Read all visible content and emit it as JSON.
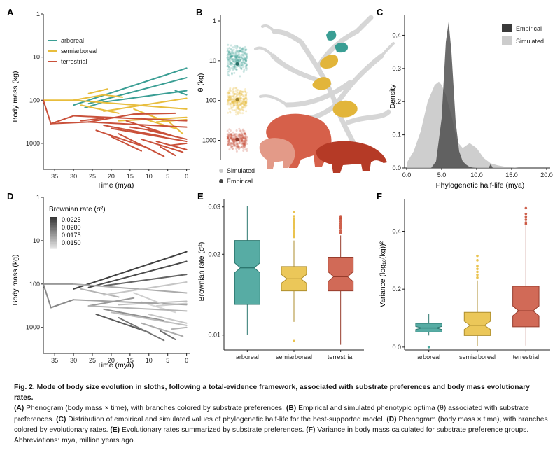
{
  "colors": {
    "arboreal": "#3a9e94",
    "semiarboreal": "#e8bd3c",
    "terrestrial": "#c9503a",
    "empirical": "#555555",
    "simulated": "#cccccc",
    "axis": "#222222"
  },
  "panels": {
    "A": {
      "letter": "A",
      "ylabel": "Body mass (kg)",
      "xlabel": "Time (mya)"
    },
    "B": {
      "letter": "B",
      "ylabel": "θ (kg)"
    },
    "C": {
      "letter": "C",
      "ylabel": "Density",
      "xlabel": "Phylogenetic half-life (mya)"
    },
    "D": {
      "letter": "D",
      "ylabel": "Body mass (kg)",
      "xlabel": "Time (mya)",
      "legend_title": "Brownian rate (σ²)",
      "legend_values": [
        "0.0225",
        "0.0200",
        "0.0175",
        "0.0150"
      ]
    },
    "E": {
      "letter": "E",
      "ylabel": "Brownian rate (σ²)"
    },
    "F": {
      "letter": "F",
      "ylabel": "Variance (log₁₀(kg))²"
    }
  },
  "chart_data": [
    {
      "panel": "A",
      "type": "line",
      "xlabel": "Time (mya)",
      "ylabel": "Body mass (kg)",
      "x_reversed": true,
      "y_log": true,
      "y_reversed": true,
      "xlim": [
        38,
        -1
      ],
      "ylim": [
        1,
        4000
      ],
      "x_ticks": [
        "35",
        "30",
        "25",
        "20",
        "15",
        "10",
        "5",
        "0"
      ],
      "y_ticks": [
        "1",
        "10",
        "100",
        "1000"
      ],
      "legend": [
        "arboreal",
        "semiarboreal",
        "terrestrial"
      ],
      "series": [
        {
          "name": "arboreal",
          "segments": [
            [
              [
                30,
                130
              ],
              [
                0,
                18
              ]
            ],
            [
              [
                26,
                120
              ],
              [
                0,
                30
              ]
            ],
            [
              [
                27,
                150
              ],
              [
                22,
                110
              ]
            ],
            [
              [
                22,
                110
              ],
              [
                0,
                60
              ]
            ],
            [
              [
                3,
                60
              ],
              [
                0,
                75
              ]
            ]
          ]
        },
        {
          "name": "semiarboreal",
          "segments": [
            [
              [
                38,
                100
              ],
              [
                30,
                100
              ]
            ],
            [
              [
                30,
                100
              ],
              [
                0,
                160
              ]
            ],
            [
              [
                30,
                100
              ],
              [
                22,
                75
              ]
            ],
            [
              [
                22,
                75
              ],
              [
                17,
                85
              ]
            ],
            [
              [
                28,
                130
              ],
              [
                18,
                200
              ]
            ],
            [
              [
                22,
                180
              ],
              [
                0,
                90
              ]
            ],
            [
              [
                18,
                300
              ],
              [
                0,
                250
              ]
            ],
            [
              [
                12,
                260
              ],
              [
                3,
                450
              ]
            ],
            [
              [
                8,
                320
              ],
              [
                0,
                280
              ]
            ],
            [
              [
                5,
                300
              ],
              [
                1,
                600
              ]
            ],
            [
              [
                14,
                160
              ],
              [
                6,
                300
              ]
            ],
            [
              [
                26,
                70
              ],
              [
                21,
                55
              ]
            ]
          ]
        },
        {
          "name": "terrestrial",
          "segments": [
            [
              [
                38,
                100
              ],
              [
                36,
                350
              ]
            ],
            [
              [
                36,
                350
              ],
              [
                30,
                230
              ]
            ],
            [
              [
                30,
                230
              ],
              [
                0,
                300
              ]
            ],
            [
              [
                36,
                350
              ],
              [
                26,
                320
              ]
            ],
            [
              [
                26,
                320
              ],
              [
                14,
                210
              ]
            ],
            [
              [
                14,
                210
              ],
              [
                3,
                200
              ]
            ],
            [
              [
                26,
                320
              ],
              [
                0,
                420
              ]
            ],
            [
              [
                24,
                500
              ],
              [
                10,
                1300
              ]
            ],
            [
              [
                22,
                380
              ],
              [
                6,
                700
              ]
            ],
            [
              [
                20,
                450
              ],
              [
                0,
                900
              ]
            ],
            [
              [
                18,
                600
              ],
              [
                6,
                2000
              ]
            ],
            [
              [
                16,
                300
              ],
              [
                3,
                700
              ]
            ],
            [
              [
                12,
                800
              ],
              [
                1,
                1600
              ]
            ],
            [
              [
                10,
                500
              ],
              [
                0,
                800
              ]
            ],
            [
              [
                8,
                900
              ],
              [
                0,
                1400
              ]
            ],
            [
              [
                20,
                700
              ],
              [
                12,
                1500
              ]
            ],
            [
              [
                7,
                1200
              ],
              [
                3,
                1900
              ]
            ],
            [
              [
                15,
                420
              ],
              [
                8,
                520
              ]
            ],
            [
              [
                4,
                1100
              ],
              [
                0,
                1000
              ]
            ],
            [
              [
                28,
                300
              ],
              [
                22,
                260
              ]
            ]
          ]
        }
      ]
    },
    {
      "panel": "B",
      "type": "scatter",
      "ylabel": "θ (kg)",
      "y_log": true,
      "y_reversed": true,
      "y_ticks": [
        "1",
        "10",
        "100",
        "1000"
      ],
      "legend": [
        "Simulated",
        "Empirical"
      ],
      "series": [
        {
          "name": "arboreal",
          "simulated_range": [
            3,
            30
          ],
          "empirical": 12
        },
        {
          "name": "semiarboreal",
          "simulated_range": [
            35,
            300
          ],
          "empirical": 95
        },
        {
          "name": "terrestrial",
          "simulated_range": [
            450,
            2200
          ],
          "empirical": 950
        }
      ]
    },
    {
      "panel": "C",
      "type": "area",
      "xlabel": "Phylogenetic half-life (mya)",
      "ylabel": "Density",
      "xlim": [
        -0.3,
        20.5
      ],
      "ylim": [
        0,
        0.46
      ],
      "x_ticks": [
        "0.0",
        "5.0",
        "10.0",
        "15.0",
        "20.0"
      ],
      "y_ticks": [
        "0.0",
        "0.1",
        "0.2",
        "0.3",
        "0.4"
      ],
      "legend": [
        "Empirical",
        "Simulated"
      ],
      "series": [
        {
          "name": "Empirical",
          "x": [
            3.5,
            4.2,
            5.0,
            5.6,
            6.0,
            6.4,
            7.0,
            7.5,
            8.0,
            8.5,
            9.0,
            9.5,
            10.0
          ],
          "y": [
            0.0,
            0.02,
            0.15,
            0.38,
            0.44,
            0.35,
            0.14,
            0.05,
            0.02,
            0.01,
            0.003,
            0.001,
            0.0
          ]
        },
        {
          "name": "Simulated",
          "x": [
            0.0,
            1.0,
            2.0,
            3.0,
            4.0,
            4.6,
            5.0,
            5.6,
            6.5,
            7.2,
            8.0,
            9.0,
            10.0,
            11.0,
            12.0,
            13.0,
            14.0,
            15.0,
            16.0,
            20.0
          ],
          "y": [
            0.015,
            0.05,
            0.11,
            0.2,
            0.25,
            0.26,
            0.25,
            0.22,
            0.15,
            0.08,
            0.06,
            0.075,
            0.06,
            0.03,
            0.014,
            0.008,
            0.004,
            0.002,
            0.0,
            0.0
          ]
        }
      ]
    },
    {
      "panel": "D",
      "type": "line",
      "xlabel": "Time (mya)",
      "ylabel": "Body mass (kg)",
      "x_reversed": true,
      "y_log": true,
      "y_reversed": true,
      "xlim": [
        38,
        -1
      ],
      "ylim": [
        1,
        4000
      ],
      "x_ticks": [
        "35",
        "30",
        "25",
        "20",
        "15",
        "10",
        "5",
        "0"
      ],
      "y_ticks": [
        "1",
        "10",
        "100",
        "1000"
      ],
      "color_scale": {
        "title": "Brownian rate (σ²)",
        "min": 0.014,
        "max": 0.0235,
        "ticks": [
          0.0225,
          0.02,
          0.0175,
          0.015
        ]
      },
      "segments": [
        {
          "from": [
            30,
            130
          ],
          "to": [
            0,
            18
          ],
          "rate": 0.023
        },
        {
          "from": [
            26,
            120
          ],
          "to": [
            0,
            30
          ],
          "rate": 0.0225
        },
        {
          "from": [
            22,
            110
          ],
          "to": [
            0,
            60
          ],
          "rate": 0.021
        },
        {
          "from": [
            38,
            100
          ],
          "to": [
            30,
            100
          ],
          "rate": 0.018
        },
        {
          "from": [
            30,
            100
          ],
          "to": [
            0,
            160
          ],
          "rate": 0.017
        },
        {
          "from": [
            28,
            130
          ],
          "to": [
            18,
            200
          ],
          "rate": 0.0165
        },
        {
          "from": [
            22,
            180
          ],
          "to": [
            0,
            90
          ],
          "rate": 0.0155
        },
        {
          "from": [
            18,
            300
          ],
          "to": [
            0,
            250
          ],
          "rate": 0.016
        },
        {
          "from": [
            12,
            260
          ],
          "to": [
            3,
            450
          ],
          "rate": 0.0145
        },
        {
          "from": [
            8,
            320
          ],
          "to": [
            0,
            280
          ],
          "rate": 0.015
        },
        {
          "from": [
            38,
            100
          ],
          "to": [
            36,
            350
          ],
          "rate": 0.019
        },
        {
          "from": [
            36,
            350
          ],
          "to": [
            30,
            230
          ],
          "rate": 0.019
        },
        {
          "from": [
            30,
            230
          ],
          "to": [
            0,
            300
          ],
          "rate": 0.0175
        },
        {
          "from": [
            26,
            320
          ],
          "to": [
            14,
            210
          ],
          "rate": 0.018
        },
        {
          "from": [
            26,
            320
          ],
          "to": [
            0,
            420
          ],
          "rate": 0.0165
        },
        {
          "from": [
            24,
            500
          ],
          "to": [
            10,
            1300
          ],
          "rate": 0.0215
        },
        {
          "from": [
            22,
            380
          ],
          "to": [
            6,
            700
          ],
          "rate": 0.0185
        },
        {
          "from": [
            20,
            450
          ],
          "to": [
            0,
            900
          ],
          "rate": 0.016
        },
        {
          "from": [
            18,
            600
          ],
          "to": [
            6,
            2000
          ],
          "rate": 0.02
        },
        {
          "from": [
            12,
            800
          ],
          "to": [
            1,
            1600
          ],
          "rate": 0.017
        },
        {
          "from": [
            10,
            500
          ],
          "to": [
            0,
            800
          ],
          "rate": 0.0155
        },
        {
          "from": [
            7,
            1200
          ],
          "to": [
            3,
            1900
          ],
          "rate": 0.0205
        },
        {
          "from": [
            14,
            160
          ],
          "to": [
            6,
            300
          ],
          "rate": 0.015
        },
        {
          "from": [
            4,
            1100
          ],
          "to": [
            0,
            1000
          ],
          "rate": 0.0165
        }
      ]
    },
    {
      "panel": "E",
      "type": "box",
      "ylabel": "Brownian rate (σ²)",
      "y_log": true,
      "ylim": [
        0.0088,
        0.032
      ],
      "y_ticks": [
        "0.01",
        "0.02",
        "0.03"
      ],
      "categories": [
        "arboreal",
        "semiarboreal",
        "terrestrial"
      ],
      "series": [
        {
          "name": "arboreal",
          "min": 0.01,
          "q1": 0.013,
          "median": 0.0178,
          "q3": 0.0225,
          "max": 0.0302,
          "outliers": []
        },
        {
          "name": "semiarboreal",
          "min": 0.0112,
          "q1": 0.0146,
          "median": 0.0162,
          "q3": 0.018,
          "max": 0.0225,
          "outliers": [
            0.0095,
            0.0232,
            0.0236,
            0.024,
            0.0245,
            0.025,
            0.0255,
            0.026,
            0.0265,
            0.027,
            0.0277,
            0.0287
          ]
        },
        {
          "name": "terrestrial",
          "min": 0.0092,
          "q1": 0.0146,
          "median": 0.0165,
          "q3": 0.0195,
          "max": 0.0235,
          "outliers": [
            0.024,
            0.0245,
            0.025,
            0.0255,
            0.026,
            0.0265,
            0.027,
            0.0273,
            0.0277
          ]
        }
      ]
    },
    {
      "panel": "F",
      "type": "box",
      "ylabel": "Variance (log₁₀(kg))²",
      "ylim": [
        -0.01,
        0.51
      ],
      "y_ticks": [
        "0.0",
        "0.2",
        "0.4"
      ],
      "categories": [
        "arboreal",
        "semiarboreal",
        "terrestrial"
      ],
      "series": [
        {
          "name": "arboreal",
          "min": 0.04,
          "q1": 0.052,
          "median": 0.066,
          "q3": 0.082,
          "max": 0.115,
          "outliers": [
            0.0
          ]
        },
        {
          "name": "semiarboreal",
          "min": 0.003,
          "q1": 0.04,
          "median": 0.075,
          "q3": 0.12,
          "max": 0.23,
          "outliers": [
            0.24,
            0.25,
            0.26,
            0.27,
            0.28,
            0.3,
            0.315
          ]
        },
        {
          "name": "terrestrial",
          "min": 0.005,
          "q1": 0.07,
          "median": 0.125,
          "q3": 0.21,
          "max": 0.42,
          "outliers": [
            0.425,
            0.43,
            0.44,
            0.45,
            0.46,
            0.48
          ]
        }
      ]
    }
  ],
  "caption": {
    "title": "Fig. 2. Mode of body size evolution in sloths, following a total-evidence framework, associated with substrate preferences and body mass evolutionary rates.",
    "lines": [
      {
        "label": "(A)",
        "text": "Phenogram (body mass × time), with branches colored by substrate preferences. "
      },
      {
        "label": "(B)",
        "text": "Empirical and simulated phenotypic optima (θ) associated with substrate preferences. "
      },
      {
        "label": "(C)",
        "text": "Distribution of empirical and simulated values of phylogenetic half-life for the best-supported model. "
      },
      {
        "label": "(D)",
        "text": "Phenogram (body mass × time), with branches colored by evolutionary rates. "
      },
      {
        "label": "(E)",
        "text": "Evolutionary rates summarized by substrate preferences. "
      },
      {
        "label": "(F)",
        "text": "Variance in body mass calculated for substrate preference groups. "
      }
    ],
    "tail": "Abbreviations: mya, million years ago."
  }
}
